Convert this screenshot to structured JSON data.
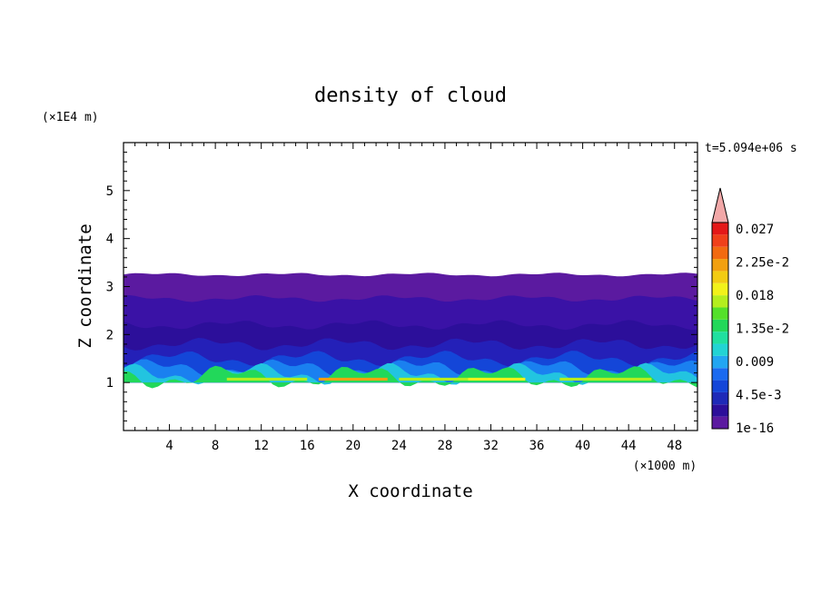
{
  "chart_data": {
    "type": "heatmap",
    "title": "density of cloud",
    "xlabel": "X coordinate",
    "ylabel": "Z coordinate",
    "x_unit": "(×1000 m)",
    "y_unit": "(×1E4 m)",
    "time_label": "t=5.094e+06 s",
    "xlim": [
      0,
      50
    ],
    "ylim": [
      0,
      6
    ],
    "x_ticks": [
      "4",
      "8",
      "12",
      "16",
      "20",
      "24",
      "28",
      "32",
      "36",
      "40",
      "44",
      "48"
    ],
    "y_ticks": [
      "1",
      "2",
      "3",
      "4",
      "5"
    ],
    "colorbar": {
      "labels": [
        "1e-16",
        "4.5e-3",
        "0.009",
        "1.35e-2",
        "0.018",
        "2.25e-2",
        "0.027"
      ],
      "colors": [
        "#5b1aa0",
        "#2c0f9a",
        "#1e2ab8",
        "#1446d8",
        "#1a6af0",
        "#22a6f2",
        "#22d4d4",
        "#20e0a0",
        "#22d85a",
        "#54e02a",
        "#b4ee1e",
        "#f2f21a",
        "#f2cc12",
        "#f2a010",
        "#f26a10",
        "#f0401a",
        "#e41818"
      ],
      "extend_color": "#f2a8a8"
    },
    "cloud_profile": {
      "z_base": 1.0,
      "layers": [
        {
          "z_top": 3.25,
          "value": "1e-16"
        },
        {
          "z_top": 2.75,
          "value": "2.25e-3"
        },
        {
          "z_top": 2.2,
          "value": "4.5e-3"
        },
        {
          "z_top": 1.8,
          "value": "6.75e-3"
        },
        {
          "z_top": 1.5,
          "value": "0.009"
        },
        {
          "z_top": 1.3,
          "value": "1.125e-2"
        },
        {
          "z_top": 1.18,
          "value": "1.35e-2"
        },
        {
          "z_top": 1.12,
          "value": "0.018"
        }
      ]
    }
  }
}
